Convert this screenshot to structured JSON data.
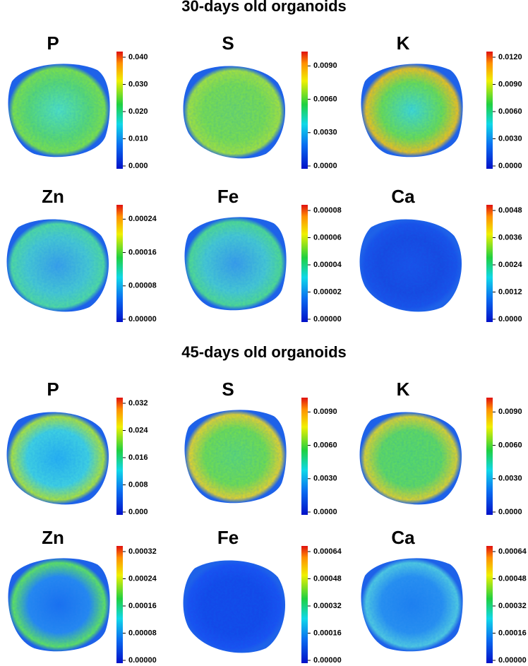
{
  "sections": [
    {
      "title": "30-days old organoids",
      "panels": [
        {
          "label": "P",
          "ticks": [
            "0.000",
            "0.010",
            "0.020",
            "0.030",
            "0.040"
          ]
        },
        {
          "label": "S",
          "ticks": [
            "0.0000",
            "0.0030",
            "0.0060",
            "0.0090"
          ]
        },
        {
          "label": "K",
          "ticks": [
            "0.0000",
            "0.0030",
            "0.0060",
            "0.0090",
            "0.0120"
          ]
        },
        {
          "label": "Zn",
          "ticks": [
            "0.00000",
            "0.00008",
            "0.00016",
            "0.00024"
          ]
        },
        {
          "label": "Fe",
          "ticks": [
            "0.00000",
            "0.00002",
            "0.00004",
            "0.00006",
            "0.00008"
          ]
        },
        {
          "label": "Ca",
          "ticks": [
            "0.0000",
            "0.0012",
            "0.0024",
            "0.0036",
            "0.0048"
          ]
        }
      ]
    },
    {
      "title": "45-days old organoids",
      "panels": [
        {
          "label": "P",
          "ticks": [
            "0.000",
            "0.008",
            "0.016",
            "0.024",
            "0.032"
          ]
        },
        {
          "label": "S",
          "ticks": [
            "0.0000",
            "0.0030",
            "0.0060",
            "0.0090"
          ]
        },
        {
          "label": "K",
          "ticks": [
            "0.0000",
            "0.0030",
            "0.0060",
            "0.0090"
          ]
        },
        {
          "label": "Zn",
          "ticks": [
            "0.00000",
            "0.00008",
            "0.00016",
            "0.00024",
            "0.00032"
          ]
        },
        {
          "label": "Fe",
          "ticks": [
            "0.00000",
            "0.00016",
            "0.00032",
            "0.00048",
            "0.00064"
          ]
        },
        {
          "label": "Ca",
          "ticks": [
            "0.00000",
            "0.00016",
            "0.00032",
            "0.00048",
            "0.00064"
          ]
        }
      ]
    }
  ]
}
